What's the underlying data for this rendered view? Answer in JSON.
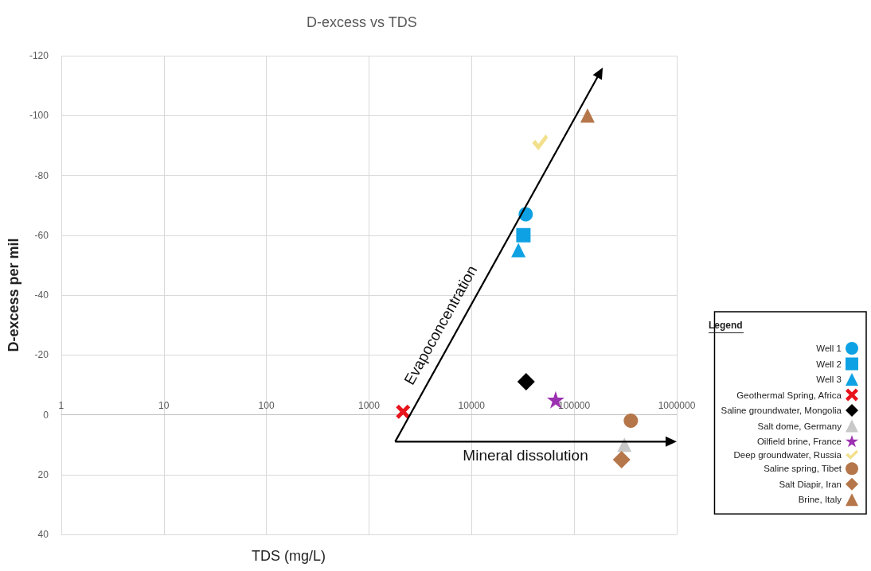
{
  "chart_data": {
    "type": "scatter",
    "title": "D-excess vs TDS",
    "xlabel": "TDS (mg/L)",
    "ylabel": "D-excess per mil",
    "legend_title": "Legend",
    "log": "x",
    "xlim": [
      1,
      1000000
    ],
    "xticks": [
      1,
      10,
      100,
      1000,
      10000,
      100000,
      1000000
    ],
    "ylim": [
      40,
      -120
    ],
    "yticks": [
      -120,
      -100,
      -80,
      -60,
      -40,
      -20,
      0,
      20,
      40
    ],
    "grid": true,
    "legend": "right",
    "annotations": [
      "Evapoconcentration",
      "Mineral dissolution"
    ],
    "series": [
      {
        "name": "Well 1",
        "color": "#0ea2e4",
        "marker": "circle",
        "x": [
          33700
        ],
        "values": [
          -67
        ]
      },
      {
        "name": "Well 2",
        "color": "#0ea2e4",
        "marker": "square",
        "x": [
          32000
        ],
        "values": [
          -60
        ]
      },
      {
        "name": "Well 3",
        "color": "#0ea2e4",
        "marker": "triangle",
        "x": [
          28600
        ],
        "values": [
          -55
        ]
      },
      {
        "name": "Geothermal Spring, Africa",
        "color": "#e8141c",
        "marker": "cross",
        "x": [
          2150
        ],
        "values": [
          -1
        ]
      },
      {
        "name": "Saline groundwater, Mongolia",
        "color": "#000000",
        "marker": "diamond",
        "x": [
          34000
        ],
        "values": [
          -11
        ]
      },
      {
        "name": "Salt dome, Germany",
        "color": "#c8c8c8",
        "marker": "triangle",
        "x": [
          309000
        ],
        "values": [
          10
        ]
      },
      {
        "name": "Oilfield brine, France",
        "color": "#9b30b0",
        "marker": "star",
        "x": [
          66000
        ],
        "values": [
          -5
        ]
      },
      {
        "name": "Deep groundwater, Russia",
        "color": "#f2e08c",
        "x": [
          46500
        ],
        "values": [
          -91
        ]
      },
      {
        "name": "Saline spring, Tibet",
        "color": "#b5764a",
        "marker": "circle",
        "x": [
          357000
        ],
        "values": [
          2
        ]
      },
      {
        "name": "Salt Diapir, Iran",
        "color": "#b5764a",
        "marker": "diamond",
        "x": [
          290000
        ],
        "values": [
          15
        ]
      },
      {
        "name": "Brine, Italy",
        "color": "#b5764a",
        "marker": "triangle",
        "x": [
          135000
        ],
        "values": [
          -100
        ]
      }
    ]
  }
}
